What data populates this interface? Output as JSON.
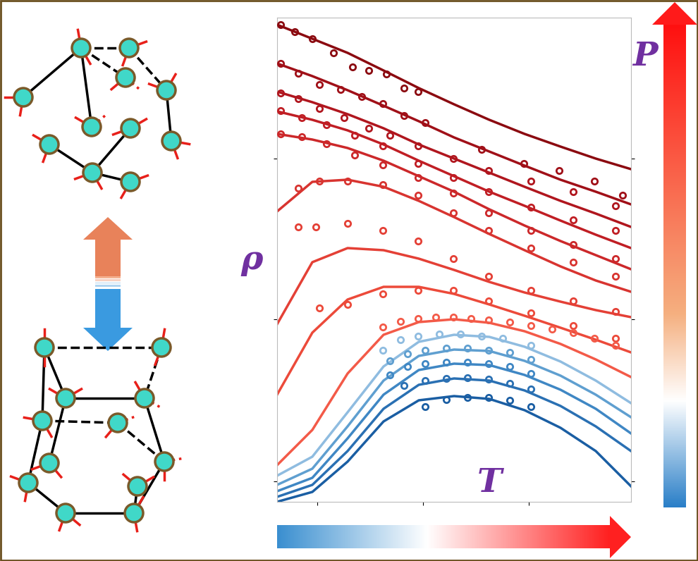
{
  "chart_data": {
    "type": "line",
    "x_label": "T",
    "y_label": "ρ",
    "colorbar_label": "P",
    "xlim": [
      0,
      502
    ],
    "ylim": [
      0,
      687
    ],
    "xticks": [
      57,
      207,
      357
    ],
    "yticks": [
      29,
      259,
      487
    ],
    "tick_labels": false,
    "grid": false,
    "marker": "o",
    "line_style": "solid",
    "x": [
      0,
      50,
      100,
      151,
      201,
      251,
      301,
      351,
      402,
      452,
      502
    ],
    "series": [
      {
        "color": "#8b0a10",
        "values": [
          677,
          657,
          637,
          612,
          587,
          564,
          542,
          522,
          504,
          487,
          472
        ],
        "points_x": [
          5,
          25,
          50,
          80,
          107,
          130,
          155,
          180,
          200
        ],
        "points_y": [
          677,
          667,
          657,
          637,
          617,
          612,
          607,
          587,
          582
        ]
      },
      {
        "color": "#a01018",
        "values": [
          622,
          604,
          584,
          562,
          540,
          517,
          497,
          477,
          457,
          440,
          422
        ],
        "points_x": [
          5,
          30,
          60,
          90,
          120,
          150,
          180,
          210,
          290,
          350,
          400,
          450,
          490
        ],
        "points_y": [
          622,
          608,
          592,
          585,
          575,
          565,
          548,
          538,
          500,
          480,
          470,
          455,
          435
        ]
      },
      {
        "color": "#b0161e",
        "values": [
          582,
          567,
          550,
          530,
          507,
          487,
          467,
          447,
          427,
          409,
          390
        ],
        "points_x": [
          5,
          30,
          60,
          95,
          130,
          160,
          200,
          250,
          300,
          360,
          420,
          480
        ],
        "points_y": [
          580,
          572,
          558,
          545,
          530,
          520,
          505,
          487,
          470,
          455,
          440,
          420
        ]
      },
      {
        "color": "#c01e24",
        "values": [
          554,
          542,
          527,
          507,
          484,
          462,
          440,
          420,
          399,
          379,
          360
        ],
        "points_x": [
          5,
          35,
          70,
          110,
          150,
          200,
          250,
          300,
          360,
          420,
          480
        ],
        "points_y": [
          555,
          545,
          535,
          520,
          505,
          480,
          460,
          440,
          418,
          400,
          385
        ]
      },
      {
        "color": "#cc282a",
        "values": [
          522,
          514,
          502,
          484,
          462,
          440,
          415,
          392,
          370,
          350,
          330
        ],
        "points_x": [
          5,
          35,
          70,
          110,
          150,
          200,
          250,
          300,
          360,
          420,
          480
        ],
        "points_y": [
          522,
          518,
          508,
          492,
          478,
          460,
          438,
          410,
          385,
          365,
          345
        ]
      },
      {
        "color": "#d83430",
        "values": [
          412,
          454,
          457,
          447,
          427,
          404,
          380,
          357,
          334,
          314,
          298
        ],
        "points_x": [
          30,
          60,
          100,
          150,
          200,
          250,
          300,
          360,
          420,
          480
        ],
        "points_y": [
          445,
          455,
          455,
          450,
          435,
          410,
          385,
          360,
          340,
          320
        ]
      },
      {
        "color": "#e44036",
        "values": [
          252,
          340,
          360,
          357,
          345,
          329,
          312,
          297,
          284,
          272,
          262
        ],
        "points_x": [
          30,
          55,
          100,
          150,
          200,
          250,
          300,
          360,
          420,
          480
        ],
        "points_y": [
          390,
          390,
          395,
          385,
          370,
          345,
          320,
          300,
          285,
          270
        ]
      },
      {
        "color": "#ec4a3a",
        "values": [
          152,
          240,
          287,
          305,
          305,
          295,
          280,
          264,
          247,
          230,
          212
        ],
        "points_x": [
          60,
          100,
          150,
          200,
          250,
          300,
          360,
          420,
          480
        ],
        "points_y": [
          275,
          280,
          295,
          300,
          300,
          285,
          268,
          250,
          232
        ]
      },
      {
        "color": "#f35a48",
        "values": [
          52,
          102,
          182,
          237,
          255,
          259,
          254,
          242,
          224,
          202,
          177
        ],
        "points_x": [
          150,
          175,
          200,
          225,
          250,
          275,
          300,
          330,
          360,
          390,
          420,
          450,
          480
        ],
        "points_y": [
          248,
          256,
          260,
          262,
          262,
          260,
          258,
          255,
          250,
          245,
          240,
          232,
          222
        ]
      },
      {
        "color": "#8fbce0",
        "values": [
          37,
          64,
          127,
          192,
          227,
          237,
          234,
          220,
          199,
          172,
          140
        ],
        "points_x": [
          150,
          175,
          200,
          230,
          260,
          290,
          320,
          360
        ],
        "points_y": [
          215,
          230,
          235,
          238,
          238,
          235,
          232,
          222
        ]
      },
      {
        "color": "#5f9fd0",
        "values": [
          24,
          47,
          107,
          172,
          207,
          216,
          214,
          200,
          179,
          152,
          120
        ],
        "points_x": [
          160,
          185,
          210,
          240,
          270,
          300,
          330,
          360
        ],
        "points_y": [
          200,
          210,
          215,
          218,
          218,
          215,
          212,
          202
        ]
      },
      {
        "color": "#3f87c4",
        "values": [
          15,
          34,
          90,
          152,
          187,
          196,
          194,
          180,
          159,
          132,
          97
        ],
        "points_x": [
          160,
          185,
          210,
          240,
          270,
          300,
          330,
          360
        ],
        "points_y": [
          180,
          192,
          196,
          198,
          198,
          196,
          192,
          182
        ]
      },
      {
        "color": "#2a70b3",
        "values": [
          7,
          24,
          72,
          132,
          166,
          175,
          172,
          158,
          136,
          107,
          72
        ],
        "points_x": [
          180,
          210,
          240,
          270,
          300,
          330,
          360
        ],
        "points_y": [
          165,
          172,
          175,
          176,
          174,
          168,
          160
        ]
      },
      {
        "color": "#1a5ea3",
        "values": [
          0,
          14,
          57,
          114,
          144,
          150,
          146,
          130,
          105,
          72,
          22
        ],
        "points_x": [
          210,
          240,
          270,
          300,
          330,
          360
        ],
        "points_y": [
          135,
          145,
          148,
          148,
          144,
          135
        ]
      }
    ]
  }
}
